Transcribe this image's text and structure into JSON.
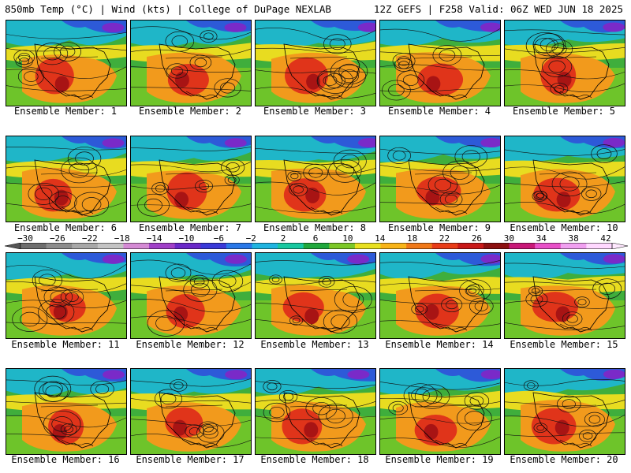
{
  "header": {
    "left": "850mb Temp (°C) | Wind (kts) | College of DuPage NEXLAB",
    "right": "12Z GEFS | F258 Valid: 06Z WED JUN 18 2025"
  },
  "members": [
    "Ensemble Member: 1",
    "Ensemble Member: 2",
    "Ensemble Member: 3",
    "Ensemble Member: 4",
    "Ensemble Member: 5",
    "Ensemble Member: 6",
    "Ensemble Member: 7",
    "Ensemble Member: 8",
    "Ensemble Member: 9",
    "Ensemble Member: 10",
    "Ensemble Member: 11",
    "Ensemble Member: 12",
    "Ensemble Member: 13",
    "Ensemble Member: 14",
    "Ensemble Member: 15",
    "Ensemble Member: 16",
    "Ensemble Member: 17",
    "Ensemble Member: 18",
    "Ensemble Member: 19",
    "Ensemble Member: 20"
  ],
  "colorbar": {
    "ticks": [
      "−30",
      "−26",
      "−22",
      "−18",
      "−14",
      "−10",
      "−6",
      "−2",
      "2",
      "6",
      "10",
      "14",
      "18",
      "22",
      "26",
      "30",
      "34",
      "38",
      "42"
    ],
    "colors": [
      "#6e6e6e",
      "#8c8c8c",
      "#a8a8a8",
      "#c4c4c4",
      "#d48ad4",
      "#a040c8",
      "#6a28c8",
      "#3a3ad8",
      "#2a78e8",
      "#20b4e0",
      "#18c8a0",
      "#20a83c",
      "#7cc828",
      "#e8e020",
      "#f8b418",
      "#f07818",
      "#e83c18",
      "#c81818",
      "#8c1010",
      "#c81878",
      "#e850c8",
      "#f0a0f0",
      "#ffd8ff"
    ]
  }
}
